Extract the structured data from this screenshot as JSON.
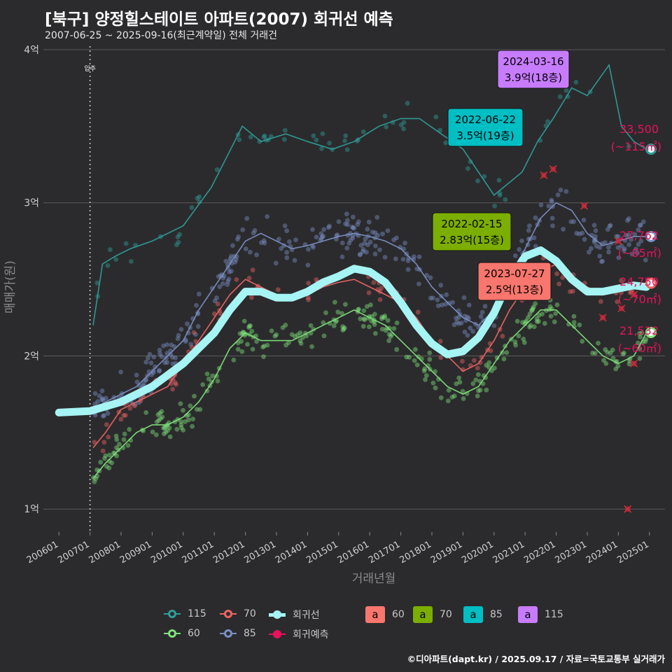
{
  "title": "[북구] 양정힐스테이트 아파트(2007) 회귀선 예측",
  "subtitle": "2007-06-25 ~ 2025-09-16(최근계약일) 전체 거래건",
  "caption": "©디아파트(dapt.kr) / 2025.09.17 / 자료=국토교통부 실거래가",
  "colors": {
    "background": "#2b2b2d",
    "grid": "#5a5a5a",
    "s115": "#2e9e9a",
    "s85": "#7b8fc4",
    "s70": "#ee6464",
    "s60": "#7fe07a",
    "regression": "#a6f4f4",
    "forecast": "#e8125a"
  },
  "chart_data": {
    "type": "scatter",
    "xlabel": "거래년월",
    "ylabel": "매매가(원)",
    "ylim": [
      "0.85억",
      "4.05억"
    ],
    "y_ticks": [
      "1억",
      "2억",
      "3억",
      "4억"
    ],
    "x_ticks": [
      "200601",
      "200701",
      "200801",
      "200901",
      "201001",
      "201101",
      "201201",
      "201301",
      "201401",
      "201501",
      "201601",
      "201701",
      "201801",
      "201901",
      "202001",
      "202101",
      "202201",
      "202301",
      "202401",
      "202501"
    ],
    "move_in_label": "입주",
    "move_in_date": "2007-07",
    "series": [
      {
        "name": "115",
        "key": "s115",
        "points": [
          [
            2007.6,
            2.2
          ],
          [
            2007.9,
            2.6
          ],
          [
            2008.3,
            2.65
          ],
          [
            2008.8,
            2.7
          ],
          [
            2009.5,
            2.75
          ],
          [
            2010.5,
            2.85
          ],
          [
            2011.4,
            3.1
          ],
          [
            2011.9,
            3.3
          ],
          [
            2012.4,
            3.5
          ],
          [
            2013.0,
            3.4
          ],
          [
            2013.8,
            3.45
          ],
          [
            2014.5,
            3.4
          ],
          [
            2015.3,
            3.35
          ],
          [
            2016.0,
            3.4
          ],
          [
            2016.8,
            3.5
          ],
          [
            2017.5,
            3.55
          ],
          [
            2018.1,
            3.55
          ],
          [
            2019.5,
            3.35
          ],
          [
            2020.5,
            3.05
          ],
          [
            2021.4,
            3.2
          ],
          [
            2021.9,
            3.4
          ],
          [
            2022.4,
            3.55
          ],
          [
            2023.0,
            3.75
          ],
          [
            2023.5,
            3.7
          ],
          [
            2024.2,
            3.9
          ],
          [
            2024.6,
            3.5
          ],
          [
            2025.0,
            3.4
          ],
          [
            2025.4,
            3.35
          ]
        ]
      },
      {
        "name": "85",
        "key": "s85",
        "points": [
          [
            2007.6,
            1.65
          ],
          [
            2008.0,
            1.7
          ],
          [
            2008.5,
            1.75
          ],
          [
            2009.0,
            1.8
          ],
          [
            2009.5,
            1.9
          ],
          [
            2010.0,
            2.0
          ],
          [
            2010.5,
            2.1
          ],
          [
            2011.0,
            2.3
          ],
          [
            2011.5,
            2.45
          ],
          [
            2012.0,
            2.6
          ],
          [
            2012.5,
            2.75
          ],
          [
            2013.0,
            2.8
          ],
          [
            2013.5,
            2.75
          ],
          [
            2014.0,
            2.7
          ],
          [
            2014.5,
            2.72
          ],
          [
            2015.0,
            2.75
          ],
          [
            2015.5,
            2.78
          ],
          [
            2016.0,
            2.8
          ],
          [
            2016.5,
            2.78
          ],
          [
            2017.0,
            2.75
          ],
          [
            2017.5,
            2.7
          ],
          [
            2018.0,
            2.6
          ],
          [
            2018.5,
            2.45
          ],
          [
            2019.0,
            2.35
          ],
          [
            2019.5,
            2.25
          ],
          [
            2020.0,
            2.2
          ],
          [
            2020.5,
            2.3
          ],
          [
            2021.0,
            2.5
          ],
          [
            2021.5,
            2.7
          ],
          [
            2022.0,
            2.9
          ],
          [
            2022.5,
            3.0
          ],
          [
            2023.0,
            2.95
          ],
          [
            2023.5,
            2.8
          ],
          [
            2024.0,
            2.72
          ],
          [
            2024.5,
            2.75
          ],
          [
            2025.0,
            2.78
          ],
          [
            2025.4,
            2.78
          ]
        ]
      },
      {
        "name": "70",
        "key": "s70",
        "points": [
          [
            2007.6,
            1.4
          ],
          [
            2008.0,
            1.5
          ],
          [
            2008.5,
            1.65
          ],
          [
            2009.0,
            1.7
          ],
          [
            2009.5,
            1.75
          ],
          [
            2010.0,
            1.8
          ],
          [
            2010.5,
            1.95
          ],
          [
            2011.0,
            2.1
          ],
          [
            2011.5,
            2.25
          ],
          [
            2012.0,
            2.4
          ],
          [
            2012.5,
            2.5
          ],
          [
            2013.0,
            2.45
          ],
          [
            2013.5,
            2.4
          ],
          [
            2014.0,
            2.38
          ],
          [
            2014.5,
            2.4
          ],
          [
            2015.0,
            2.45
          ],
          [
            2015.5,
            2.48
          ],
          [
            2016.0,
            2.5
          ],
          [
            2016.5,
            2.45
          ],
          [
            2017.0,
            2.4
          ],
          [
            2017.5,
            2.35
          ],
          [
            2018.0,
            2.25
          ],
          [
            2018.5,
            2.1
          ],
          [
            2019.0,
            2.0
          ],
          [
            2019.5,
            1.9
          ],
          [
            2020.0,
            1.95
          ],
          [
            2020.5,
            2.1
          ],
          [
            2021.0,
            2.3
          ],
          [
            2021.5,
            2.45
          ],
          [
            2022.0,
            2.55
          ],
          [
            2022.5,
            2.6
          ],
          [
            2023.0,
            2.5
          ],
          [
            2023.5,
            2.45
          ],
          [
            2024.0,
            2.4
          ],
          [
            2024.5,
            2.42
          ],
          [
            2025.0,
            2.45
          ],
          [
            2025.4,
            2.475
          ]
        ]
      },
      {
        "name": "60",
        "key": "s60",
        "points": [
          [
            2007.6,
            1.2
          ],
          [
            2008.0,
            1.3
          ],
          [
            2008.5,
            1.4
          ],
          [
            2009.0,
            1.5
          ],
          [
            2009.5,
            1.55
          ],
          [
            2010.0,
            1.55
          ],
          [
            2010.5,
            1.6
          ],
          [
            2011.0,
            1.7
          ],
          [
            2011.5,
            1.85
          ],
          [
            2012.0,
            2.05
          ],
          [
            2012.5,
            2.15
          ],
          [
            2013.0,
            2.1
          ],
          [
            2013.5,
            2.1
          ],
          [
            2014.0,
            2.1
          ],
          [
            2014.5,
            2.15
          ],
          [
            2015.0,
            2.2
          ],
          [
            2015.5,
            2.25
          ],
          [
            2016.0,
            2.3
          ],
          [
            2016.5,
            2.25
          ],
          [
            2017.0,
            2.2
          ],
          [
            2017.5,
            2.1
          ],
          [
            2018.0,
            2.0
          ],
          [
            2018.5,
            1.9
          ],
          [
            2019.0,
            1.8
          ],
          [
            2019.5,
            1.75
          ],
          [
            2020.0,
            1.8
          ],
          [
            2020.5,
            1.95
          ],
          [
            2021.0,
            2.1
          ],
          [
            2021.5,
            2.2
          ],
          [
            2022.0,
            2.3
          ],
          [
            2022.5,
            2.3
          ],
          [
            2023.0,
            2.2
          ],
          [
            2023.5,
            2.1
          ],
          [
            2024.0,
            2.0
          ],
          [
            2024.5,
            1.95
          ],
          [
            2025.0,
            2.0
          ],
          [
            2025.4,
            2.15
          ]
        ]
      },
      {
        "name": "회귀선",
        "key": "regression",
        "points": [
          [
            2006.5,
            1.63
          ],
          [
            2007.5,
            1.64
          ],
          [
            2008.5,
            1.7
          ],
          [
            2009.5,
            1.8
          ],
          [
            2010.5,
            1.95
          ],
          [
            2011.5,
            2.15
          ],
          [
            2012.0,
            2.3
          ],
          [
            2012.5,
            2.42
          ],
          [
            2013.0,
            2.42
          ],
          [
            2013.5,
            2.38
          ],
          [
            2014.0,
            2.38
          ],
          [
            2014.5,
            2.42
          ],
          [
            2015.0,
            2.48
          ],
          [
            2015.5,
            2.52
          ],
          [
            2016.0,
            2.57
          ],
          [
            2016.5,
            2.55
          ],
          [
            2017.0,
            2.48
          ],
          [
            2017.5,
            2.35
          ],
          [
            2018.0,
            2.2
          ],
          [
            2018.5,
            2.08
          ],
          [
            2019.0,
            2.01
          ],
          [
            2019.5,
            2.03
          ],
          [
            2020.0,
            2.12
          ],
          [
            2020.5,
            2.28
          ],
          [
            2021.0,
            2.5
          ],
          [
            2021.5,
            2.65
          ],
          [
            2022.0,
            2.69
          ],
          [
            2022.5,
            2.62
          ],
          [
            2023.0,
            2.5
          ],
          [
            2023.5,
            2.42
          ],
          [
            2024.0,
            2.42
          ],
          [
            2024.5,
            2.44
          ],
          [
            2025.0,
            2.46
          ],
          [
            2025.4,
            2.45
          ]
        ]
      }
    ],
    "forecast": [
      [
        2022.1,
        3.18
      ],
      [
        2022.4,
        3.22
      ],
      [
        2023.4,
        2.98
      ],
      [
        2024.0,
        2.25
      ],
      [
        2024.5,
        2.75
      ],
      [
        2024.6,
        2.31
      ],
      [
        2025.0,
        2.4
      ],
      [
        2025.0,
        1.95
      ],
      [
        2024.8,
        1.0
      ]
    ],
    "end_markers": [
      {
        "key": "s115",
        "value": 3.35,
        "label": "33,500",
        "sublabel": "(~115㎡)"
      },
      {
        "key": "s85",
        "value": 2.78,
        "label": "27,762",
        "sublabel": "(~85㎡)"
      },
      {
        "key": "s70",
        "value": 2.475,
        "label": "24,750",
        "sublabel": "(~70㎡)"
      },
      {
        "key": "s60",
        "value": 2.153,
        "label": "21,532",
        "sublabel": "(~60㎡)"
      }
    ],
    "peak_labels": [
      {
        "key": "s115",
        "date": "2024-03-16",
        "text": "3.9억(18층)",
        "x": 2024.2,
        "y": 3.9
      },
      {
        "key": "s85",
        "date": "2022-06-22",
        "text": "3.5억(19층)",
        "x": 2022.5,
        "y": 3.5
      },
      {
        "key": "s70",
        "date": "2022-02-15",
        "text": "2.83억(15층)",
        "x": 2022.1,
        "y": 2.83
      },
      {
        "key": "s60",
        "date": "2023-07-27",
        "text": "2.5억(13층)",
        "x": 2023.6,
        "y": 2.5
      }
    ],
    "label_colors": {
      "s60": "#f8766d",
      "s70": "#7cae00",
      "s85": "#00bfc4",
      "s115": "#c77cff"
    }
  },
  "legend": {
    "lines": [
      {
        "label": "115",
        "key": "s115"
      },
      {
        "label": "70",
        "key": "s70"
      },
      {
        "label": "회귀선",
        "key": "regression"
      },
      {
        "label": "60",
        "key": "s60"
      },
      {
        "label": "85",
        "key": "s85"
      },
      {
        "label": "회귀예측",
        "key": "forecast"
      }
    ],
    "boxes": [
      {
        "glyph": "a",
        "label": "60",
        "color": "#f8766d"
      },
      {
        "glyph": "a",
        "label": "70",
        "color": "#7cae00"
      },
      {
        "glyph": "a",
        "label": "85",
        "color": "#00bfc4"
      },
      {
        "glyph": "a",
        "label": "115",
        "color": "#c77cff"
      }
    ]
  }
}
